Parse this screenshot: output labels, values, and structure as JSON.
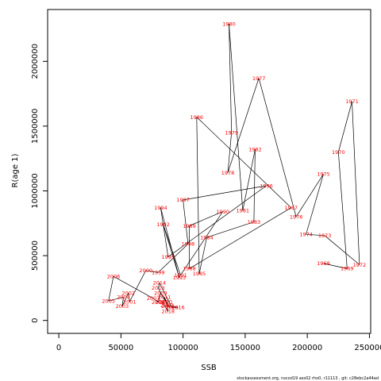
{
  "chart_data": {
    "type": "line",
    "xlabel": "SSB",
    "ylabel": "R(age 1)",
    "xlim": [
      -9000,
      251000
    ],
    "ylim": [
      -100000,
      2400000
    ],
    "x_ticks": [
      0,
      50000,
      100000,
      150000,
      200000,
      250000
    ],
    "y_ticks": [
      0,
      500000,
      1000000,
      1500000,
      2000000
    ],
    "line_color": "#000000",
    "label_color": "#ff0000",
    "points": [
      {
        "year": "1968",
        "x": 213000,
        "y": 440000
      },
      {
        "year": "1969",
        "x": 232000,
        "y": 400000
      },
      {
        "year": "1970",
        "x": 225000,
        "y": 1300000
      },
      {
        "year": "1971",
        "x": 236000,
        "y": 1690000
      },
      {
        "year": "1972",
        "x": 242000,
        "y": 430000
      },
      {
        "year": "1973",
        "x": 214000,
        "y": 655000
      },
      {
        "year": "1974",
        "x": 199000,
        "y": 665000
      },
      {
        "year": "1975",
        "x": 213000,
        "y": 1130000
      },
      {
        "year": "1976",
        "x": 191000,
        "y": 800000
      },
      {
        "year": "1977",
        "x": 161000,
        "y": 1870000
      },
      {
        "year": "1978",
        "x": 136000,
        "y": 1140000
      },
      {
        "year": "1979",
        "x": 139000,
        "y": 1450000
      },
      {
        "year": "1980",
        "x": 137000,
        "y": 2290000
      },
      {
        "year": "1981",
        "x": 148000,
        "y": 850000
      },
      {
        "year": "1982",
        "x": 158000,
        "y": 1320000
      },
      {
        "year": "1983",
        "x": 157000,
        "y": 760000
      },
      {
        "year": "1984",
        "x": 119000,
        "y": 640000
      },
      {
        "year": "1985",
        "x": 113000,
        "y": 360000
      },
      {
        "year": "1986",
        "x": 111000,
        "y": 1570000
      },
      {
        "year": "1987",
        "x": 187000,
        "y": 870000
      },
      {
        "year": "1988",
        "x": 105000,
        "y": 400000
      },
      {
        "year": "1989",
        "x": 105000,
        "y": 730000
      },
      {
        "year": "1990",
        "x": 132000,
        "y": 840000
      },
      {
        "year": "1991",
        "x": 98000,
        "y": 350000
      },
      {
        "year": "1992",
        "x": 84000,
        "y": 740000
      },
      {
        "year": "1993",
        "x": 97000,
        "y": 330000
      },
      {
        "year": "1994",
        "x": 82000,
        "y": 870000
      },
      {
        "year": "1995",
        "x": 88000,
        "y": 490000
      },
      {
        "year": "1996",
        "x": 167000,
        "y": 1040000
      },
      {
        "year": "1997",
        "x": 100000,
        "y": 930000
      },
      {
        "year": "1998",
        "x": 104000,
        "y": 590000
      },
      {
        "year": "1999",
        "x": 80000,
        "y": 370000
      },
      {
        "year": "2000",
        "x": 70000,
        "y": 385000
      },
      {
        "year": "2001",
        "x": 57000,
        "y": 145000
      },
      {
        "year": "2002",
        "x": 56000,
        "y": 210000
      },
      {
        "year": "2003",
        "x": 51000,
        "y": 110000
      },
      {
        "year": "2004",
        "x": 52000,
        "y": 180000
      },
      {
        "year": "2005",
        "x": 40000,
        "y": 150000
      },
      {
        "year": "2006",
        "x": 44000,
        "y": 340000
      },
      {
        "year": "2007",
        "x": 76000,
        "y": 170000
      },
      {
        "year": "2008",
        "x": 80000,
        "y": 140000
      },
      {
        "year": "2009",
        "x": 82000,
        "y": 210000
      },
      {
        "year": "2010",
        "x": 86000,
        "y": 145000
      },
      {
        "year": "2011",
        "x": 85000,
        "y": 180000
      },
      {
        "year": "2012",
        "x": 88000,
        "y": 110000
      },
      {
        "year": "2013",
        "x": 80000,
        "y": 250000
      },
      {
        "year": "2014",
        "x": 81000,
        "y": 290000
      },
      {
        "year": "2015",
        "x": 91000,
        "y": 100000
      },
      {
        "year": "2016",
        "x": 96000,
        "y": 100000
      },
      {
        "year": "2017",
        "x": 87000,
        "y": 115000
      },
      {
        "year": "2018",
        "x": 88000,
        "y": 70000
      },
      {
        "year": "2019",
        "x": 83000,
        "y": 145000
      }
    ]
  },
  "footer": {
    "text": "stockassessment.org,  nscod19  ass02  rho0,  r11113 ,  git:  c28ebc2a44ad"
  }
}
